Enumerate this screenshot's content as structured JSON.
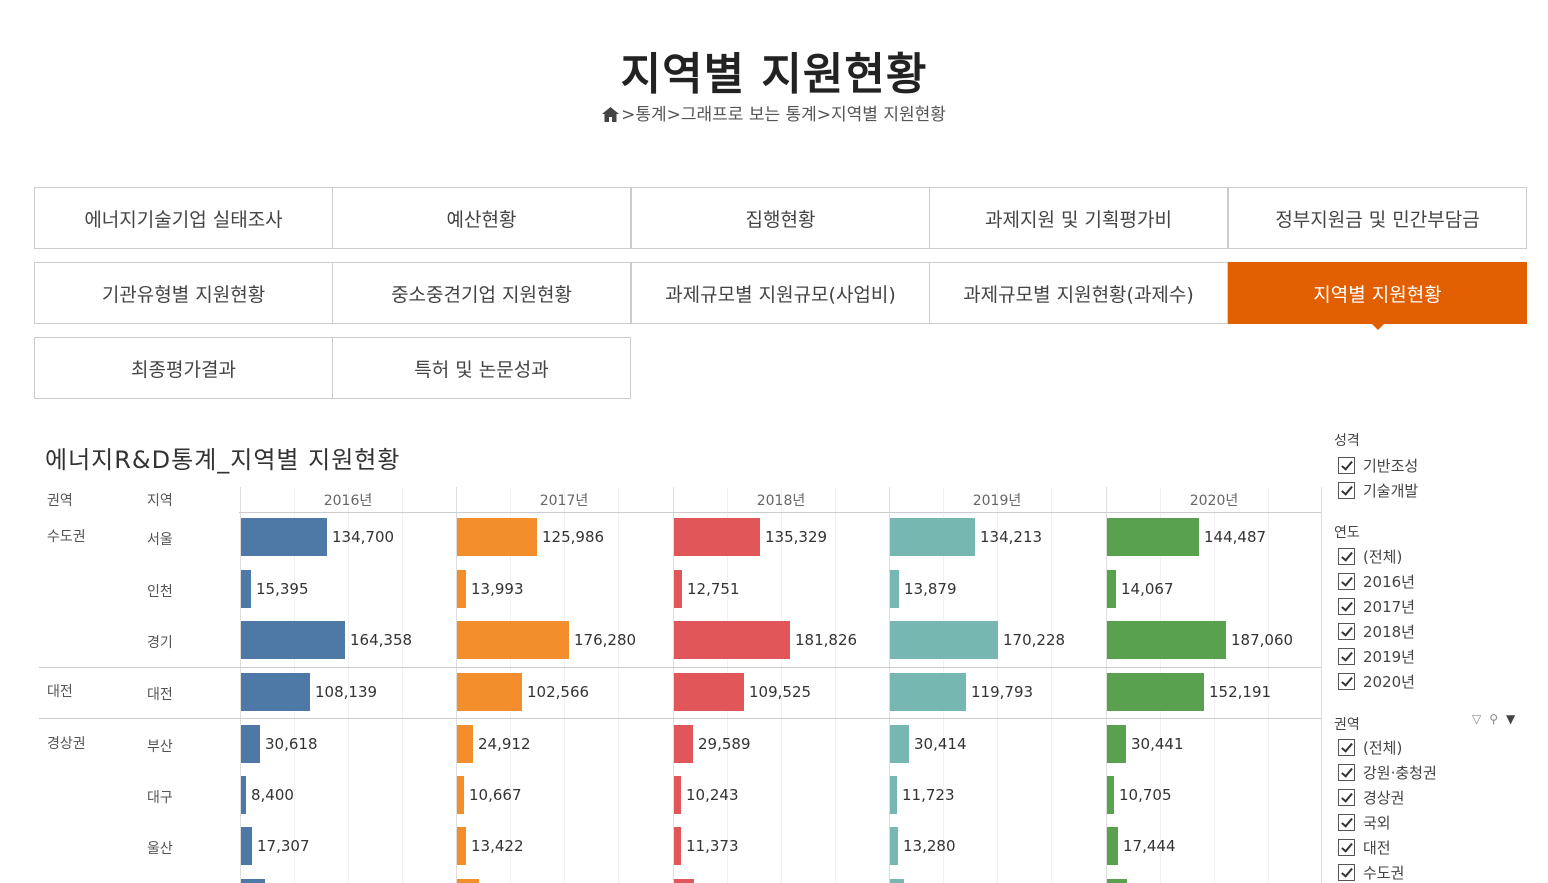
{
  "page": {
    "title": "지역별 지원현황",
    "breadcrumb": [
      ">통계",
      ">그래프로 보는 통계",
      ">지역별 지원현황"
    ]
  },
  "tabs": [
    {
      "label": "에너지기술기업 실태조사"
    },
    {
      "label": "예산현황"
    },
    {
      "label": "집행현황"
    },
    {
      "label": "과제지원 및 기획평가비"
    },
    {
      "label": "정부지원금 및 민간부담금"
    },
    {
      "label": "기관유형별 지원현황"
    },
    {
      "label": "중소중견기업 지원현황"
    },
    {
      "label": "과제규모별 지원규모(사업비)"
    },
    {
      "label": "과제규모별 지원현황(과제수)"
    },
    {
      "label": "지역별 지원현황",
      "active": true
    },
    {
      "label": "최종평가결과"
    },
    {
      "label": "특허 및 논문성과"
    }
  ],
  "viz": {
    "title": "에너지R&D통계_지역별 지원현황",
    "col_region": "권역",
    "col_city": "지역"
  },
  "chart_data": {
    "type": "bar",
    "title": "에너지R&D통계_지역별 지원현황",
    "years": [
      "2016년",
      "2017년",
      "2018년",
      "2019년",
      "2020년"
    ],
    "colors": [
      "#4e79a7",
      "#f28e2b",
      "#e15759",
      "#76b7b2",
      "#59a14f"
    ],
    "rows": [
      {
        "region": "수도권",
        "city": "서울",
        "values": [
          134700,
          125986,
          135329,
          134213,
          144487
        ],
        "labels": [
          "134,700",
          "125,986",
          "135,329",
          "134,213",
          "144,487"
        ]
      },
      {
        "region": "",
        "city": "인천",
        "values": [
          15395,
          13993,
          12751,
          13879,
          14067
        ],
        "labels": [
          "15,395",
          "13,993",
          "12,751",
          "13,879",
          "14,067"
        ]
      },
      {
        "region": "",
        "city": "경기",
        "values": [
          164358,
          176280,
          181826,
          170228,
          187060
        ],
        "labels": [
          "164,358",
          "176,280",
          "181,826",
          "170,228",
          "187,060"
        ]
      },
      {
        "region": "대전",
        "city": "대전",
        "values": [
          108139,
          102566,
          109525,
          119793,
          152191
        ],
        "labels": [
          "108,139",
          "102,566",
          "109,525",
          "119,793",
          "152,191"
        ]
      },
      {
        "region": "경상권",
        "city": "부산",
        "values": [
          30618,
          24912,
          29589,
          30414,
          30441
        ],
        "labels": [
          "30,618",
          "24,912",
          "29,589",
          "30,414",
          "30,441"
        ]
      },
      {
        "region": "",
        "city": "대구",
        "values": [
          8400,
          10667,
          10243,
          11723,
          10705
        ],
        "labels": [
          "8,400",
          "10,667",
          "10,243",
          "11,723",
          "10,705"
        ]
      },
      {
        "region": "",
        "city": "울산",
        "values": [
          17307,
          13422,
          11373,
          13280,
          17444
        ],
        "labels": [
          "17,307",
          "13,422",
          "11,373",
          "13,280",
          "17,444"
        ]
      }
    ]
  },
  "filters": {
    "nature": {
      "title": "성격",
      "items": [
        "기반조성",
        "기술개발"
      ]
    },
    "year": {
      "title": "연도",
      "items": [
        "(전체)",
        "2016년",
        "2017년",
        "2018년",
        "2019년",
        "2020년"
      ]
    },
    "region": {
      "title": "권역",
      "items": [
        "(전체)",
        "강원·충청권",
        "경상권",
        "국외",
        "대전",
        "수도권"
      ]
    }
  }
}
